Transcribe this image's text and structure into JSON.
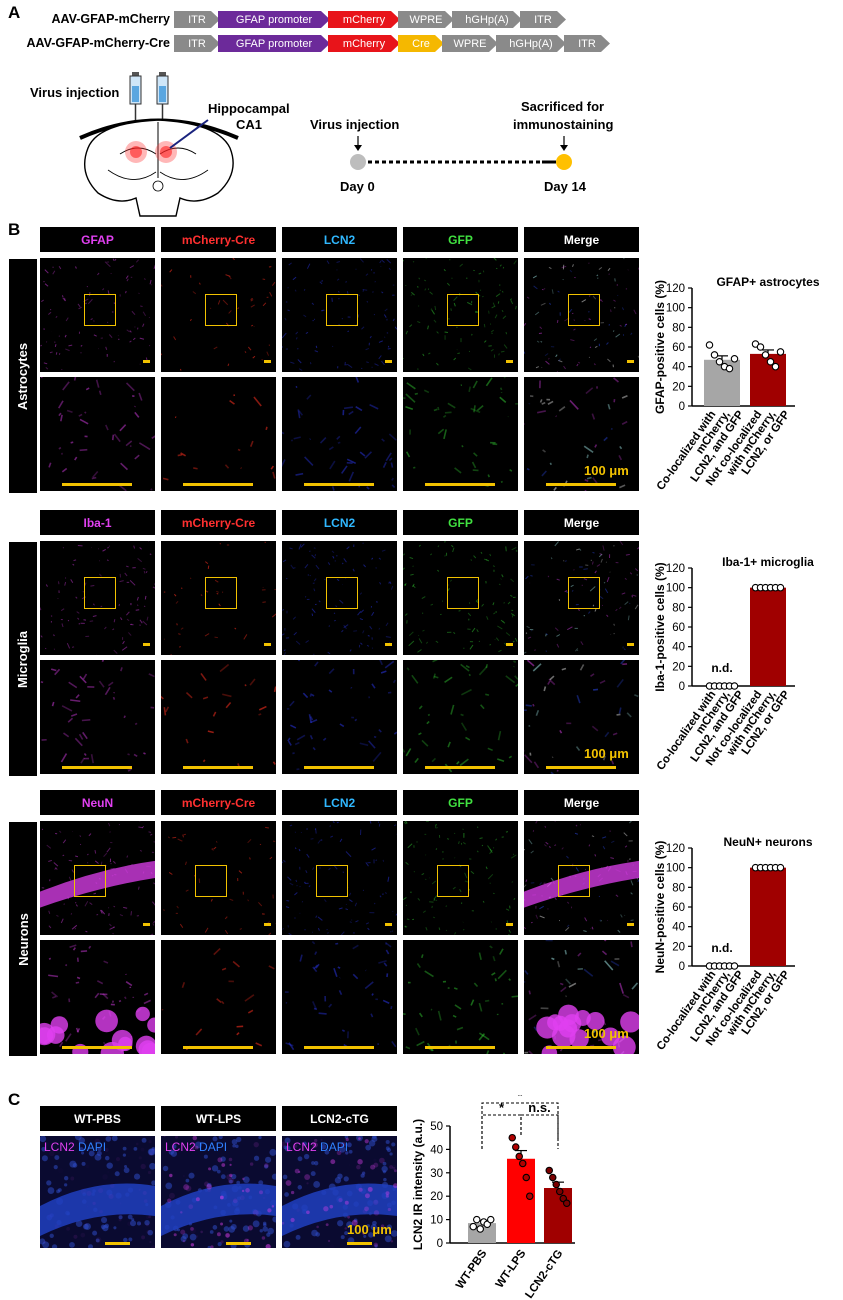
{
  "panel_letters": {
    "a": "A",
    "b": "B",
    "c": "C"
  },
  "constructs": [
    {
      "label": "AAV-GFAP-mCherry",
      "segments": [
        {
          "text": "ITR",
          "color": "#8a8a8a",
          "w": 46
        },
        {
          "text": "GFAP promoter",
          "color": "#6c2a9a",
          "w": 112
        },
        {
          "text": "mCherry",
          "color": "#e8141a",
          "w": 72
        },
        {
          "text": "WPRE",
          "color": "#8a8a8a",
          "w": 56
        },
        {
          "text": "hGHp(A)",
          "color": "#8a8a8a",
          "w": 70
        },
        {
          "text": "ITR",
          "color": "#8a8a8a",
          "w": 46
        }
      ]
    },
    {
      "label": "AAV-GFAP-mCherry-Cre",
      "segments": [
        {
          "text": "ITR",
          "color": "#8a8a8a",
          "w": 46
        },
        {
          "text": "GFAP promoter",
          "color": "#6c2a9a",
          "w": 112
        },
        {
          "text": "mCherry",
          "color": "#e8141a",
          "w": 72
        },
        {
          "text": "Cre",
          "color": "#f5b800",
          "w": 46
        },
        {
          "text": "WPRE",
          "color": "#8a8a8a",
          "w": 56
        },
        {
          "text": "hGHp(A)",
          "color": "#8a8a8a",
          "w": 70
        },
        {
          "text": "ITR",
          "color": "#8a8a8a",
          "w": 46
        }
      ]
    }
  ],
  "schematic": {
    "virus_injection": "Virus injection",
    "hippocampal": "Hippocampal",
    "ca1": "CA1",
    "timeline_virus": "Virus injection",
    "sacrificed_1": "Sacrificed for",
    "sacrificed_2": "immunostaining",
    "day0": "Day 0",
    "day14": "Day 14"
  },
  "colors": {
    "magenta": "#e040f0",
    "red": "#ff3030",
    "cyan": "#30b8ff",
    "green": "#40e040",
    "white": "#ffffff",
    "scale": "#f2c200",
    "gray_bar": "#a6a6a6",
    "dark_red": "#a00000",
    "bright_red": "#ff0000"
  },
  "rows": [
    {
      "row_label": "Astrocytes",
      "headers": [
        "GFAP",
        "mCherry-Cre",
        "LCN2",
        "GFP",
        "Merge"
      ],
      "scale_text": "100 μm"
    },
    {
      "row_label": "Microglia",
      "headers": [
        "Iba-1",
        "mCherry-Cre",
        "LCN2",
        "GFP",
        "Merge"
      ],
      "scale_text": "100 μm"
    },
    {
      "row_label": "Neurons",
      "headers": [
        "NeuN",
        "mCherry-Cre",
        "LCN2",
        "GFP",
        "Merge"
      ],
      "scale_text": "100 μm"
    }
  ],
  "panel_c": {
    "headers": [
      "WT-PBS",
      "WT-LPS",
      "LCN2-cTG"
    ],
    "overlay_lcn2": "LCN2",
    "overlay_dapi": "DAPI",
    "scale_text": "100 μm"
  },
  "chart_data": [
    {
      "type": "bar",
      "title": "GFAP+ astrocytes",
      "ylabel": "GFAP-positive cells (%)",
      "ylim": [
        0,
        120
      ],
      "yticks": [
        0,
        20,
        40,
        60,
        80,
        100,
        120
      ],
      "categories": [
        "Co-localized with mCherry, LCN2, and GFP",
        "Not co-localized with mCherry, LCN2, or GFP"
      ],
      "category_lines": [
        [
          "Co-localized with",
          "mCherry,",
          "LCN2, and GFP"
        ],
        [
          "Not co-localized",
          "with mCherry,",
          "LCN2, or GFP"
        ]
      ],
      "values": [
        47,
        53
      ],
      "errors": [
        4,
        4
      ],
      "points": [
        [
          62,
          52,
          45,
          40,
          38,
          48
        ],
        [
          63,
          60,
          52,
          45,
          40,
          55
        ]
      ],
      "colors": [
        "#a6a6a6",
        "#a00000"
      ],
      "annotations": []
    },
    {
      "type": "bar",
      "title": "Iba-1+ microglia",
      "ylabel": "Iba-1-positive cells (%)",
      "ylim": [
        0,
        120
      ],
      "yticks": [
        0,
        20,
        40,
        60,
        80,
        100,
        120
      ],
      "categories": [
        "Co-localized with mCherry, LCN2, and GFP",
        "Not co-localized with mCherry, LCN2, or GFP"
      ],
      "category_lines": [
        [
          "Co-localized with",
          "mCherry,",
          "LCN2, and GFP"
        ],
        [
          "Not co-localized",
          "with mCherry,",
          "LCN2, or GFP"
        ]
      ],
      "values": [
        0,
        100
      ],
      "errors": [
        0,
        0
      ],
      "points": [
        [
          0,
          0,
          0,
          0,
          0,
          0
        ],
        [
          100,
          100,
          100,
          100,
          100,
          100
        ]
      ],
      "colors": [
        "#a6a6a6",
        "#a00000"
      ],
      "annotations": [
        "n.d."
      ]
    },
    {
      "type": "bar",
      "title": "NeuN+ neurons",
      "ylabel": "NeuN-positive cells (%)",
      "ylim": [
        0,
        120
      ],
      "yticks": [
        0,
        20,
        40,
        60,
        80,
        100,
        120
      ],
      "categories": [
        "Co-localized with mCherry, LCN2, and GFP",
        "Not co-localized with mCherry, LCN2, or GFP"
      ],
      "category_lines": [
        [
          "Co-localized with",
          "mCherry,",
          "LCN2, and GFP"
        ],
        [
          "Not co-localized",
          "with mCherry,",
          "LCN2, or GFP"
        ]
      ],
      "values": [
        0,
        100
      ],
      "errors": [
        0,
        0
      ],
      "points": [
        [
          0,
          0,
          0,
          0,
          0,
          0
        ],
        [
          100,
          100,
          100,
          100,
          100,
          100
        ]
      ],
      "colors": [
        "#a6a6a6",
        "#a00000"
      ],
      "annotations": [
        "n.d."
      ]
    },
    {
      "type": "bar",
      "title": "",
      "ylabel": "LCN2 IR intensity (a.u.)",
      "ylim": [
        0,
        50
      ],
      "yticks": [
        0,
        10,
        20,
        30,
        40,
        50
      ],
      "categories": [
        "WT-PBS",
        "WT-LPS",
        "LCN2-cTG"
      ],
      "values": [
        8.5,
        36,
        23.5
      ],
      "errors": [
        1,
        3.5,
        2.5
      ],
      "points": [
        [
          7,
          10,
          6,
          9,
          8,
          10
        ],
        [
          45,
          41,
          37,
          34,
          28,
          20
        ],
        [
          31,
          28,
          25,
          22,
          19,
          17
        ]
      ],
      "colors": [
        "#a6a6a6",
        "#ff0000",
        "#a00000"
      ],
      "significance": [
        {
          "from": 0,
          "to": 1,
          "label": "*"
        },
        {
          "from": 1,
          "to": 2,
          "label": "n.s."
        },
        {
          "from": 0,
          "to": 2,
          "label": "*"
        }
      ]
    }
  ]
}
